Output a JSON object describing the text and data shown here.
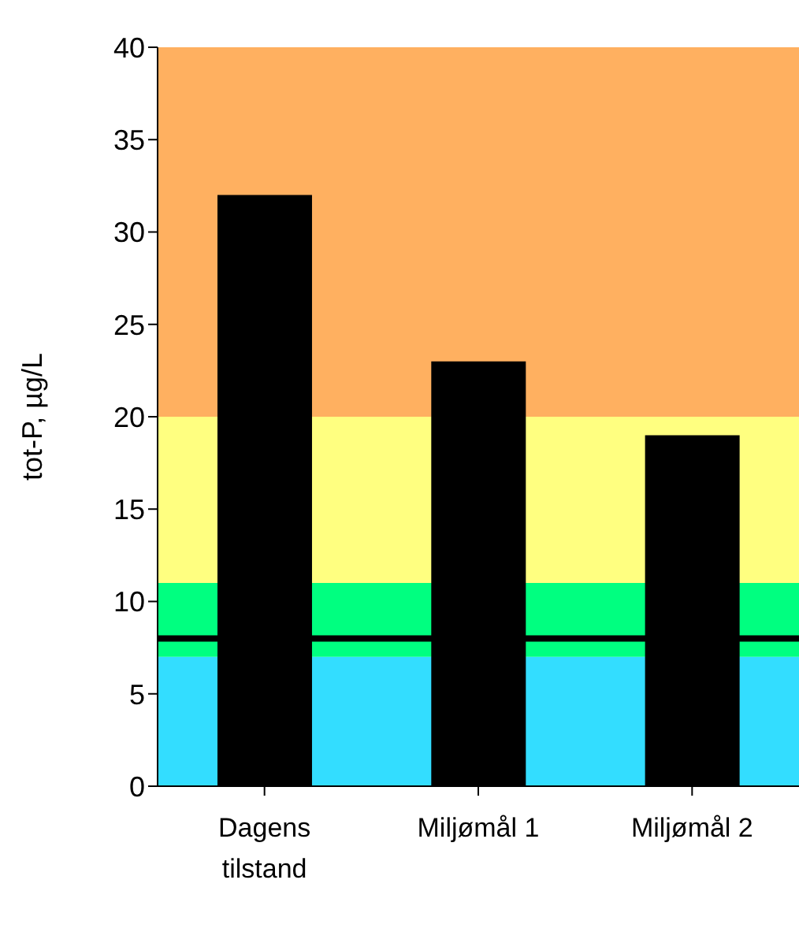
{
  "chart_data": {
    "type": "bar",
    "ylabel": "tot-P, µg/L",
    "categories": [
      "Dagens tilstand",
      "Miljømål 1",
      "Miljømål 2"
    ],
    "values": [
      32,
      23,
      19
    ],
    "color": "#000000",
    "ylim": [
      0,
      40
    ],
    "yticks": [
      0,
      5,
      10,
      15,
      20,
      25,
      30,
      35,
      40
    ],
    "grid": false,
    "bands": [
      {
        "axis": "y",
        "from": 0,
        "to": 7,
        "color": "#33ddff"
      },
      {
        "axis": "y",
        "from": 7,
        "to": 11,
        "color": "#00ff80"
      },
      {
        "axis": "y",
        "from": 11,
        "to": 20,
        "color": "#ffff80"
      },
      {
        "axis": "y",
        "from": 20,
        "to": 40,
        "color": "#ffb060"
      }
    ],
    "ref_lines": [
      {
        "axis": "y",
        "value": 8,
        "color": "#000000"
      }
    ]
  }
}
